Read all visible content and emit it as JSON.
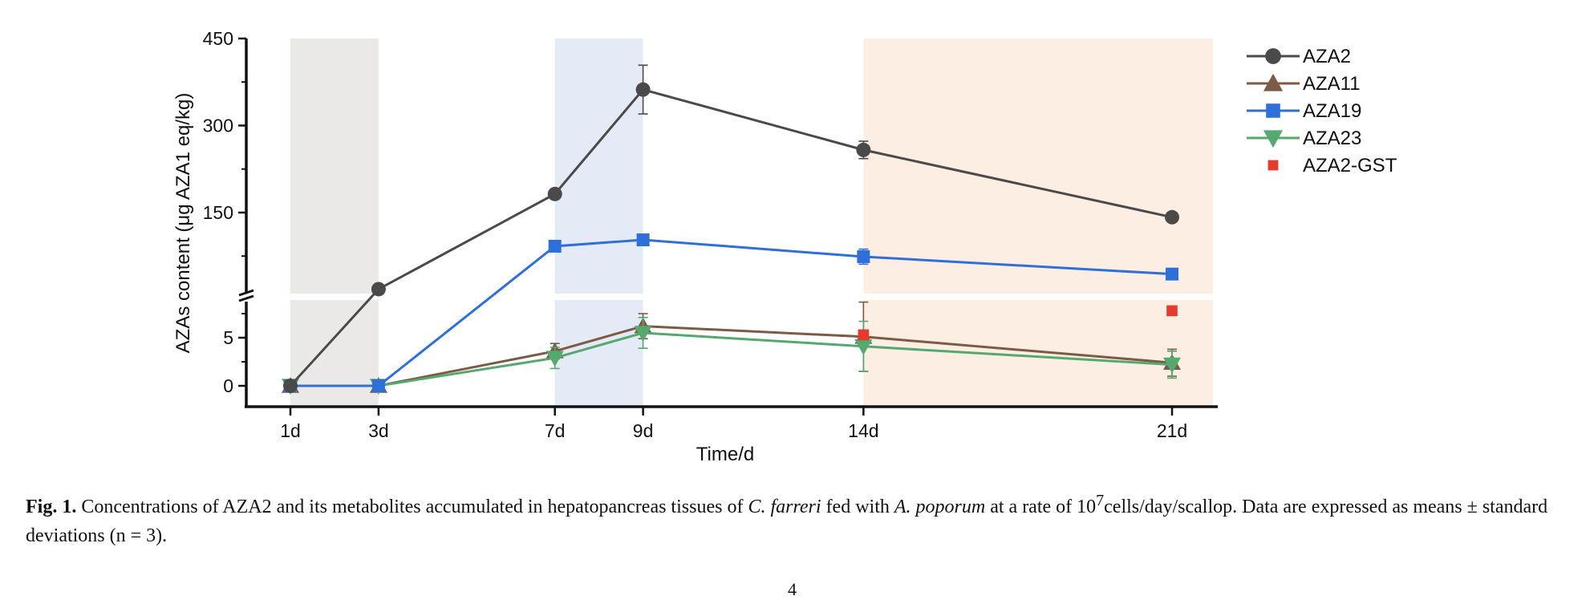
{
  "chart_data": {
    "type": "line",
    "xlabel": "Time/d",
    "ylabel": "AZAs content (μg AZA1 eq/kg)",
    "x_categories": [
      "1d",
      "3d",
      "7d",
      "9d",
      "14d",
      "21d"
    ],
    "x_days": [
      1,
      3,
      7,
      9,
      14,
      21
    ],
    "y_axis_break": true,
    "y_upper_ticks": [
      "150",
      "300",
      "450"
    ],
    "y_lower_ticks": [
      "0",
      "5"
    ],
    "y_upper_range": [
      0,
      450
    ],
    "y_lower_range": [
      -2,
      10
    ],
    "shaded_phases": [
      {
        "from_day": 1,
        "to_day": 3,
        "color": "#ebe9e7"
      },
      {
        "from_day": 7,
        "to_day": 9,
        "color": "#e4eaf6"
      },
      {
        "from_day": 14,
        "to_day": 22,
        "color": "#fdeee4"
      }
    ],
    "legend_position": "right",
    "series": [
      {
        "name": "AZA2",
        "color": "#4a4a4a",
        "marker": "circle",
        "line": true,
        "values": [
          0,
          18,
          182,
          362,
          258,
          142
        ],
        "errors": [
          0,
          2,
          4,
          42,
          15,
          5
        ]
      },
      {
        "name": "AZA11",
        "color": "#7b5b45",
        "marker": "triangle-up",
        "line": true,
        "values": [
          0,
          0,
          3.6,
          6.2,
          5.1,
          2.4
        ],
        "errors": [
          0,
          0,
          0.8,
          1.3,
          3.6,
          1.4
        ]
      },
      {
        "name": "AZA19",
        "color": "#2f6fd8",
        "marker": "square",
        "line": true,
        "values": [
          0,
          0,
          92,
          103,
          74,
          44
        ],
        "errors": [
          0,
          0,
          4,
          4,
          13,
          4
        ]
      },
      {
        "name": "AZA23",
        "color": "#55a86e",
        "marker": "triangle-down",
        "line": true,
        "values": [
          0,
          0,
          2.9,
          5.5,
          4.1,
          2.2
        ],
        "errors": [
          0,
          0,
          1.1,
          1.6,
          2.6,
          1.4
        ]
      },
      {
        "name": "AZA2-GST",
        "color": "#e53a2c",
        "marker": "square",
        "line": false,
        "points": [
          {
            "x": "14d",
            "y": 5.3
          },
          {
            "x": "21d",
            "y": 7.8
          }
        ]
      }
    ]
  },
  "caption": {
    "label": "Fig. 1.",
    "part1": " Concentrations of AZA2 and its metabolites accumulated in hepatopancreas tissues of ",
    "species1": "C. farreri",
    "part2": " fed with ",
    "species2": "A. poporum",
    "part3": " at a rate of 10",
    "exponent": "7",
    "part4": "cells/day/scallop. Data are expressed as means ± standard deviations (n = 3)."
  },
  "page_number": "4"
}
